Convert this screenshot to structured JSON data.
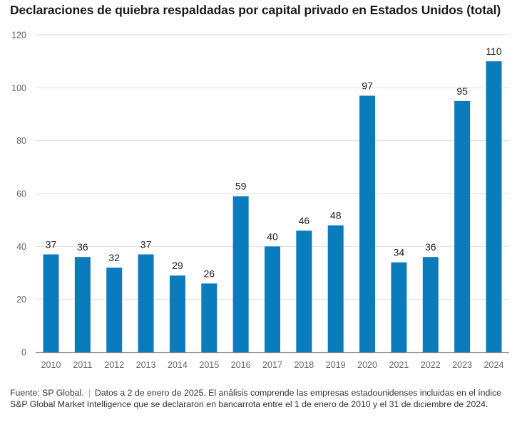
{
  "chart_data": {
    "type": "bar",
    "title": "Declaraciones de quiebra respaldadas por capital privado en Estados Unidos (total)",
    "xlabel": "",
    "ylabel": "",
    "categories": [
      "2010",
      "2011",
      "2012",
      "2013",
      "2014",
      "2015",
      "2016",
      "2017",
      "2018",
      "2019",
      "2020",
      "2021",
      "2022",
      "2023",
      "2024"
    ],
    "values": [
      37,
      36,
      32,
      37,
      29,
      26,
      59,
      40,
      46,
      48,
      97,
      34,
      36,
      95,
      110
    ],
    "ylim": [
      0,
      120
    ],
    "yticks": [
      0,
      20,
      40,
      60,
      80,
      100,
      120
    ],
    "grid": true,
    "data_labels": true,
    "bar_color": "#0a7bbd",
    "legend": "none"
  },
  "footer": {
    "source": "Fuente: SP Global.",
    "separator": "|",
    "note": "Datos a 2 de enero de 2025. El análisis comprende las empresas estadounidenses incluidas en el índice S&P Global Market Intelligence que se declararon en bancarrota entre el 1 de enero de 2010 y el 31 de diciembre de 2024."
  }
}
